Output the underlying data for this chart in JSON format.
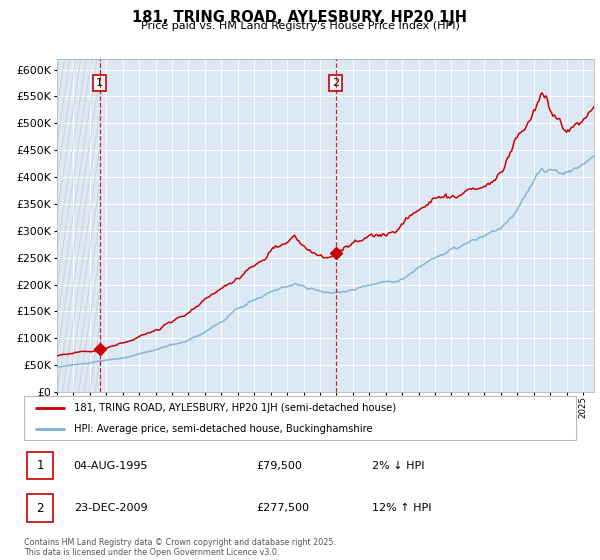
{
  "title": "181, TRING ROAD, AYLESBURY, HP20 1JH",
  "subtitle": "Price paid vs. HM Land Registry's House Price Index (HPI)",
  "legend_line1": "181, TRING ROAD, AYLESBURY, HP20 1JH (semi-detached house)",
  "legend_line2": "HPI: Average price, semi-detached house, Buckinghamshire",
  "purchase1": {
    "label": "1",
    "date": "04-AUG-1995",
    "price": 79500,
    "pct": "2%",
    "dir": "↓"
  },
  "purchase2": {
    "label": "2",
    "date": "23-DEC-2009",
    "price": 277500,
    "pct": "12%",
    "dir": "↑"
  },
  "year_start": 1993,
  "year_end": 2025,
  "ylim_max": 620000,
  "ytick_step": 50000,
  "red_color": "#cc0000",
  "blue_color": "#7ab0d4",
  "bg_color": "#dce9f5",
  "marker1_year": 1995.583,
  "marker2_year": 2009.958,
  "footer": "Contains HM Land Registry data © Crown copyright and database right 2025.\nThis data is licensed under the Open Government Licence v3.0."
}
